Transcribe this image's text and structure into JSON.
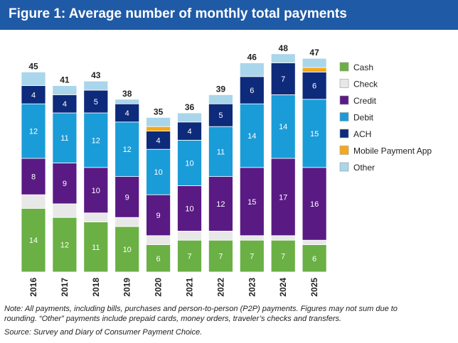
{
  "title": "Figure 1: Average number of monthly total payments",
  "notes": [
    "Note: All payments, including bills, purchases and person-to-person (P2P) payments. Figures may not sum due to",
    "rounding. “Other” payments include prepaid cards, money orders, traveler’s checks and transfers."
  ],
  "source": "Source: Survey and Diary of Consumer Payment Choice.",
  "chart_data": {
    "type": "bar",
    "stacked": true,
    "categories": [
      "2016",
      "2017",
      "2018",
      "2019",
      "2020",
      "2021",
      "2022",
      "2023",
      "2024",
      "2025"
    ],
    "totals": [
      45,
      41,
      43,
      38,
      35,
      36,
      39,
      46,
      48,
      47
    ],
    "series": [
      {
        "name": "Cash",
        "color": "#6ab045",
        "values": [
          14,
          12,
          11,
          10,
          6,
          7,
          7,
          7,
          7,
          6
        ],
        "labels": [
          "14",
          "12",
          "11",
          "10",
          "6",
          "7",
          "7",
          "7",
          "7",
          "6"
        ]
      },
      {
        "name": "Check",
        "color": "#e8e8e8",
        "values": [
          3,
          3,
          2,
          2,
          2,
          2,
          2,
          1,
          1,
          1
        ],
        "labels": [
          "",
          "",
          "",
          "",
          "",
          "",
          "",
          "",
          "",
          ""
        ]
      },
      {
        "name": "Credit",
        "color": "#5a1a84",
        "values": [
          8,
          9,
          10,
          9,
          9,
          10,
          12,
          15,
          17,
          16
        ],
        "labels": [
          "8",
          "9",
          "10",
          "9",
          "9",
          "10",
          "12",
          "15",
          "17",
          "16"
        ]
      },
      {
        "name": "Debit",
        "color": "#1a9cd8",
        "values": [
          12,
          11,
          12,
          12,
          10,
          10,
          11,
          14,
          14,
          15
        ],
        "labels": [
          "12",
          "11",
          "12",
          "12",
          "10",
          "10",
          "11",
          "14",
          "14",
          "15"
        ]
      },
      {
        "name": "ACH",
        "color": "#0e2a7a",
        "values": [
          4,
          4,
          5,
          4,
          4,
          4,
          5,
          6,
          7,
          6
        ],
        "labels": [
          "4",
          "4",
          "5",
          "4",
          "4",
          "4",
          "5",
          "6",
          "7",
          "6"
        ]
      },
      {
        "name": "Mobile Payment App",
        "color": "#f5a81c",
        "values": [
          0,
          0,
          0,
          0,
          1,
          0,
          0,
          0,
          0,
          1
        ],
        "labels": [
          "",
          "",
          "",
          "",
          "",
          "",
          "",
          "",
          "",
          ""
        ]
      },
      {
        "name": "Other",
        "color": "#a9d6ea",
        "values": [
          3,
          2,
          2,
          1,
          2,
          2,
          2,
          3,
          2,
          2
        ],
        "labels": [
          "",
          "",
          "",
          "",
          "",
          "",
          "",
          "",
          "",
          ""
        ]
      }
    ],
    "ylim": [
      0,
      50
    ],
    "grid": false,
    "legend": "right"
  }
}
